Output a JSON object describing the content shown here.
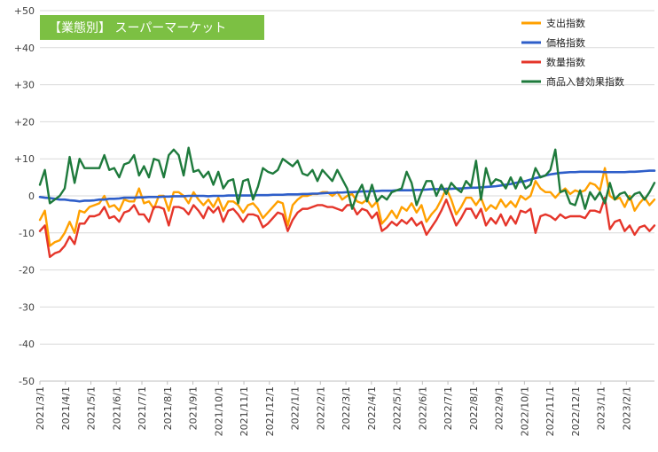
{
  "chart_data": {
    "type": "line",
    "title": "【業態別】 スーパーマーケット",
    "title_bg": "#7cc043",
    "xlabel": "",
    "ylabel": "",
    "ylim": [
      -50,
      50
    ],
    "y_ticks": [
      50,
      40,
      30,
      20,
      10,
      0,
      -10,
      -20,
      -30,
      -40,
      -50
    ],
    "y_tick_labels": [
      "+50",
      "+40",
      "+30",
      "+20",
      "+10",
      "0",
      "-10",
      "-20",
      "-30",
      "-40",
      "-50"
    ],
    "x_tick_labels": [
      "2021/3/1",
      "2021/4/1",
      "2021/5/1",
      "2021/6/1",
      "2021/7/1",
      "2021/8/1",
      "2021/9/1",
      "2021/10/1",
      "2021/11/1",
      "2021/12/1",
      "2022/1/1",
      "2022/2/1",
      "2022/3/1",
      "2022/4/1",
      "2022/5/1",
      "2022/6/1",
      "2022/7/1",
      "2022/8/1",
      "2022/9/1",
      "2022/10/1",
      "2022/11/1",
      "2022/12/1",
      "2023/1/1",
      "2023/2/1"
    ],
    "grid": "horizontal",
    "legend_position": "top-right",
    "series": [
      {
        "name": "支出指数",
        "color": "#ffa000",
        "values": [
          -6.5,
          -4,
          -13.5,
          -12.5,
          -12,
          -10,
          -7,
          -10,
          -4,
          -4.5,
          -3,
          -2.5,
          -2,
          0,
          -3,
          -2.5,
          -4,
          -1,
          -1.5,
          -1.5,
          2,
          -2,
          -1.5,
          -3.5,
          0,
          0,
          -4,
          1,
          1,
          0,
          -2,
          1,
          -1,
          -2.5,
          -1,
          -3,
          -0.5,
          -4,
          -1.5,
          -1.5,
          -2.5,
          -4.5,
          -2.5,
          -2,
          -3.5,
          -6,
          -4.5,
          -3,
          -1.5,
          -2,
          -8,
          -2.5,
          -1,
          0,
          0,
          0.5,
          0.5,
          1,
          1,
          0,
          1,
          -1,
          0,
          0.5,
          -1.5,
          -2,
          -1,
          -3,
          -1.5,
          -7.5,
          -6,
          -4,
          -6,
          -3,
          -4,
          -2,
          -4.5,
          -2.5,
          -7,
          -5,
          -3.5,
          -1,
          2,
          -1,
          -5,
          -3,
          -0.5,
          -0.5,
          -2.5,
          -0.5,
          -4,
          -2.5,
          -3.5,
          -1,
          -3,
          -1.5,
          -3,
          0,
          -1,
          0,
          4,
          2,
          1,
          1,
          -0.5,
          1,
          2,
          0.5,
          1.5,
          1,
          1.5,
          3.5,
          3,
          1.5,
          7.5,
          0,
          -1,
          -0.5,
          -3,
          0,
          -4,
          -2,
          -0.5,
          -2.5,
          -1
        ],
        "x": [
          0,
          1,
          2,
          3,
          4,
          5,
          6,
          7,
          8,
          9,
          10,
          11,
          12,
          13,
          14,
          15,
          16,
          17,
          18,
          19,
          20,
          21,
          22,
          23,
          24,
          25,
          26,
          27,
          28,
          29,
          30,
          31,
          32,
          33,
          34,
          35,
          36,
          37,
          38,
          39,
          40,
          41,
          42,
          43,
          44,
          45,
          46,
          47,
          48,
          49,
          50,
          51,
          52,
          53,
          54,
          55,
          56,
          57,
          58,
          59,
          60,
          61,
          62,
          63,
          64,
          65,
          66,
          67,
          68,
          69,
          70,
          71,
          72,
          73,
          74,
          75,
          76,
          77,
          78,
          79,
          80,
          81,
          82,
          83,
          84,
          85,
          86,
          87,
          88,
          89,
          90,
          91,
          92,
          93,
          94,
          95,
          96,
          97,
          98,
          99,
          100,
          101,
          102,
          103,
          104,
          105,
          106,
          107,
          108,
          109,
          110,
          111,
          112,
          113,
          114,
          115,
          116,
          117,
          118,
          119,
          120,
          121,
          122,
          123,
          124
        ]
      },
      {
        "name": "価格指数",
        "color": "#2e5ec9",
        "values": [
          -0.3,
          -0.5,
          -0.6,
          -0.8,
          -1,
          -1,
          -1.2,
          -1.3,
          -1.5,
          -1.3,
          -1.3,
          -1.2,
          -1,
          -1,
          -0.8,
          -0.8,
          -0.7,
          -0.5,
          -0.5,
          -0.5,
          -0.4,
          -0.4,
          -0.3,
          -0.3,
          -0.3,
          -0.2,
          -0.2,
          -0.1,
          -0.1,
          -0.1,
          0,
          0,
          0,
          0,
          -0.1,
          0,
          0,
          0,
          0.1,
          0.1,
          0.1,
          0.1,
          0.1,
          0.1,
          0.2,
          0.2,
          0.2,
          0.3,
          0.3,
          0.3,
          0.4,
          0.4,
          0.4,
          0.5,
          0.5,
          0.6,
          0.6,
          0.7,
          0.8,
          0.8,
          0.9,
          0.9,
          1,
          1,
          1.1,
          1.2,
          1.2,
          1.3,
          1.3,
          1.4,
          1.4,
          1.4,
          1.5,
          1.5,
          1.5,
          1.5,
          1.6,
          1.6,
          1.7,
          1.8,
          1.8,
          1.8,
          1.9,
          1.9,
          2,
          2,
          2.1,
          2.2,
          2.2,
          2.3,
          2.4,
          2.5,
          2.6,
          2.8,
          3,
          3.2,
          3.5,
          3.8,
          4,
          4.4,
          4.8,
          5.1,
          5.5,
          5.8,
          6,
          6.2,
          6.3,
          6.4,
          6.4,
          6.5,
          6.5,
          6.5,
          6.5,
          6.5,
          6.4,
          6.4,
          6.4,
          6.4,
          6.4,
          6.5,
          6.5,
          6.6,
          6.7,
          6.8,
          6.8
        ],
        "x": [
          0,
          1,
          2,
          3,
          4,
          5,
          6,
          7,
          8,
          9,
          10,
          11,
          12,
          13,
          14,
          15,
          16,
          17,
          18,
          19,
          20,
          21,
          22,
          23,
          24,
          25,
          26,
          27,
          28,
          29,
          30,
          31,
          32,
          33,
          34,
          35,
          36,
          37,
          38,
          39,
          40,
          41,
          42,
          43,
          44,
          45,
          46,
          47,
          48,
          49,
          50,
          51,
          52,
          53,
          54,
          55,
          56,
          57,
          58,
          59,
          60,
          61,
          62,
          63,
          64,
          65,
          66,
          67,
          68,
          69,
          70,
          71,
          72,
          73,
          74,
          75,
          76,
          77,
          78,
          79,
          80,
          81,
          82,
          83,
          84,
          85,
          86,
          87,
          88,
          89,
          90,
          91,
          92,
          93,
          94,
          95,
          96,
          97,
          98,
          99,
          100,
          101,
          102,
          103,
          104,
          105,
          106,
          107,
          108,
          109,
          110,
          111,
          112,
          113,
          114,
          115,
          116,
          117,
          118,
          119,
          120,
          121,
          122,
          123,
          124
        ]
      },
      {
        "name": "数量指数",
        "color": "#e5352a",
        "values": [
          -9.5,
          -8,
          -16.5,
          -15.5,
          -15,
          -13.5,
          -11,
          -13,
          -7.5,
          -7.5,
          -5.5,
          -5.5,
          -5,
          -3,
          -6,
          -5.5,
          -7,
          -4.5,
          -4,
          -2.5,
          -5,
          -5,
          -7,
          -3,
          -3,
          -3.5,
          -8,
          -3,
          -3,
          -3.5,
          -5,
          -2.5,
          -4,
          -6,
          -3,
          -4.5,
          -3,
          -7,
          -4,
          -3.5,
          -5,
          -7,
          -5,
          -5,
          -5.5,
          -8.5,
          -7.5,
          -6,
          -4.5,
          -5,
          -9.5,
          -6.5,
          -4.5,
          -3.5,
          -3.5,
          -3,
          -2.5,
          -2.5,
          -3,
          -3,
          -3.5,
          -4,
          -2.5,
          -2.5,
          -5,
          -3.5,
          -4,
          -6,
          -4.5,
          -9.5,
          -8.5,
          -7,
          -8,
          -6.5,
          -7.5,
          -6,
          -8,
          -7,
          -10.5,
          -8.5,
          -6.5,
          -4,
          -1,
          -4.5,
          -8,
          -6,
          -3.5,
          -3.5,
          -6,
          -3.5,
          -8,
          -6,
          -7.5,
          -5,
          -8,
          -5.5,
          -7.5,
          -4,
          -4.5,
          -3.5,
          -10,
          -5.5,
          -5,
          -5.5,
          -6.5,
          -5,
          -6,
          -5.5,
          -5.5,
          -5.5,
          -6,
          -4,
          -4,
          -4.5,
          -0.5,
          -9,
          -7,
          -6.5,
          -9.5,
          -8,
          -10.5,
          -8.5,
          -8,
          -9.5,
          -8
        ],
        "x": [
          0,
          1,
          2,
          3,
          4,
          5,
          6,
          7,
          8,
          9,
          10,
          11,
          12,
          13,
          14,
          15,
          16,
          17,
          18,
          19,
          20,
          21,
          22,
          23,
          24,
          25,
          26,
          27,
          28,
          29,
          30,
          31,
          32,
          33,
          34,
          35,
          36,
          37,
          38,
          39,
          40,
          41,
          42,
          43,
          44,
          45,
          46,
          47,
          48,
          49,
          50,
          51,
          52,
          53,
          54,
          55,
          56,
          57,
          58,
          59,
          60,
          61,
          62,
          63,
          64,
          65,
          66,
          67,
          68,
          69,
          70,
          71,
          72,
          73,
          74,
          75,
          76,
          77,
          78,
          79,
          80,
          81,
          82,
          83,
          84,
          85,
          86,
          87,
          88,
          89,
          90,
          91,
          92,
          93,
          94,
          95,
          96,
          97,
          98,
          99,
          100,
          101,
          102,
          103,
          104,
          105,
          106,
          107,
          108,
          109,
          110,
          111,
          112,
          113,
          114,
          115,
          116,
          117,
          118,
          119,
          120,
          121,
          122,
          123,
          124
        ]
      },
      {
        "name": "商品入替効果指数",
        "color": "#1e7a3c",
        "values": [
          3,
          7,
          -2,
          -1,
          0,
          2,
          10.5,
          3.5,
          10,
          7.5,
          7.5,
          7.5,
          7.5,
          11,
          7,
          7.5,
          5,
          8.5,
          9,
          11,
          5.5,
          8,
          5,
          10,
          9.5,
          5,
          11,
          12.5,
          11,
          5.5,
          13,
          6.5,
          7,
          5,
          6.5,
          3,
          6.5,
          2,
          4,
          4.5,
          -2,
          4,
          4.5,
          -1,
          2.5,
          7.5,
          6.5,
          6,
          7,
          10,
          9,
          8,
          9.5,
          6,
          5.5,
          7,
          4,
          7,
          5.5,
          4,
          7,
          4.5,
          2,
          -3.5,
          0.5,
          3,
          -1.5,
          3,
          -1.5,
          0,
          -1,
          1,
          1.5,
          2,
          6.5,
          3.5,
          -2.5,
          1,
          4,
          4,
          0,
          3,
          0.5,
          3.5,
          2,
          1,
          4,
          2.5,
          9.5,
          -1,
          7.5,
          3,
          4.5,
          4,
          2,
          5,
          2,
          5,
          2,
          3,
          7.5,
          5,
          5.5,
          7,
          12.5,
          1,
          1.5,
          -2,
          -2.5,
          1.5,
          -3.5,
          1,
          -1,
          1,
          -2,
          3.5,
          -1,
          0.5,
          1,
          -1,
          0.5,
          1,
          -1,
          1,
          3.5
        ],
        "x": [
          0,
          1,
          2,
          3,
          4,
          5,
          6,
          7,
          8,
          9,
          10,
          11,
          12,
          13,
          14,
          15,
          16,
          17,
          18,
          19,
          20,
          21,
          22,
          23,
          24,
          25,
          26,
          27,
          28,
          29,
          30,
          31,
          32,
          33,
          34,
          35,
          36,
          37,
          38,
          39,
          40,
          41,
          42,
          43,
          44,
          45,
          46,
          47,
          48,
          49,
          50,
          51,
          52,
          53,
          54,
          55,
          56,
          57,
          58,
          59,
          60,
          61,
          62,
          63,
          64,
          65,
          66,
          67,
          68,
          69,
          70,
          71,
          72,
          73,
          74,
          75,
          76,
          77,
          78,
          79,
          80,
          81,
          82,
          83,
          84,
          85,
          86,
          87,
          88,
          89,
          90,
          91,
          92,
          93,
          94,
          95,
          96,
          97,
          98,
          99,
          100,
          101,
          102,
          103,
          104,
          105,
          106,
          107,
          108,
          109,
          110,
          111,
          112,
          113,
          114,
          115,
          116,
          117,
          118,
          119,
          120,
          121,
          122,
          123,
          124
        ]
      }
    ]
  }
}
